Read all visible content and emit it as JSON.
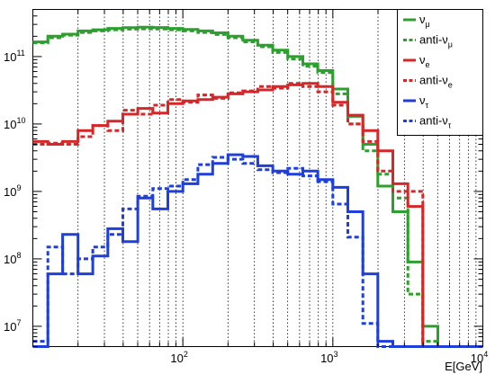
{
  "chart_data": {
    "type": "line",
    "title": "",
    "xlabel": "E[GeV]",
    "ylabel": "",
    "xscale": "log",
    "yscale": "log",
    "xlim": [
      10,
      10000
    ],
    "ylim": [
      5000000,
      500000000000
    ],
    "x_tick_labels": [
      {
        "value": 100,
        "label": "10",
        "sup": "2"
      },
      {
        "value": 1000,
        "label": "10",
        "sup": "3"
      },
      {
        "value": 10000,
        "label": "10",
        "sup": "4"
      }
    ],
    "y_tick_labels": [
      {
        "value": 10000000,
        "label": "10",
        "sup": "7"
      },
      {
        "value": 100000000,
        "label": "10",
        "sup": "8"
      },
      {
        "value": 1000000000,
        "label": "10",
        "sup": "9"
      },
      {
        "value": 10000000000,
        "label": "10",
        "sup": "10"
      },
      {
        "value": 100000000000,
        "label": "10",
        "sup": "11"
      }
    ],
    "grid": "vertical dotted",
    "legend_position": "top-right",
    "bin_edges": [
      10,
      12.6,
      15.8,
      20,
      25.1,
      31.6,
      39.8,
      50.1,
      63.1,
      79.4,
      100,
      126,
      158,
      200,
      251,
      316,
      398,
      501,
      631,
      794,
      1000,
      1259,
      1585,
      1995,
      2512,
      3162,
      3981,
      5012,
      6310,
      7943,
      10000
    ],
    "series": [
      {
        "name": "ν",
        "sub": "μ",
        "color": "#2ca02c",
        "dash": "solid",
        "values": [
          165000000000,
          200000000000,
          215000000000,
          240000000000,
          250000000000,
          262000000000,
          268000000000,
          272000000000,
          270000000000,
          262000000000,
          252000000000,
          240000000000,
          225000000000,
          200000000000,
          175000000000,
          148000000000,
          125000000000,
          100000000000,
          78000000000,
          62000000000,
          33000000000,
          13000000000,
          5000000000,
          1200000000,
          500000000,
          90000000,
          10000000,
          0,
          0,
          0
        ]
      },
      {
        "name": "anti-ν",
        "sub": "μ",
        "color": "#2ca02c",
        "dash": "dotted",
        "values": [
          160000000000,
          190000000000,
          208000000000,
          228000000000,
          240000000000,
          250000000000,
          255000000000,
          258000000000,
          256000000000,
          250000000000,
          240000000000,
          228000000000,
          212000000000,
          190000000000,
          165000000000,
          140000000000,
          115000000000,
          92000000000,
          72000000000,
          58000000000,
          28000000000,
          10000000000,
          4000000000,
          1800000000,
          800000000,
          30000000,
          6000000,
          0,
          0,
          0
        ]
      },
      {
        "name": "ν",
        "sub": "e",
        "color": "#d62728",
        "dash": "solid",
        "values": [
          5500000000,
          5000000000,
          5500000000,
          8000000000,
          9500000000,
          11000000000,
          14000000000,
          17000000000,
          14500000000,
          20000000000,
          22000000000,
          23000000000,
          25000000000,
          28000000000,
          30000000000,
          32000000000,
          36000000000,
          38000000000,
          40000000000,
          36000000000,
          21000000000,
          13500000000,
          8000000000,
          4000000000,
          1300000000,
          600000000,
          0,
          0,
          0,
          0
        ]
      },
      {
        "name": "anti-ν",
        "sub": "e",
        "color": "#d62728",
        "dash": "dotted",
        "values": [
          5000000000,
          5200000000,
          5000000000,
          6500000000,
          9500000000,
          8000000000,
          16000000000,
          14000000000,
          19000000000,
          23000000000,
          21000000000,
          27000000000,
          24000000000,
          29000000000,
          31000000000,
          36000000000,
          34000000000,
          40000000000,
          36000000000,
          30000000000,
          19000000000,
          10000000000,
          5500000000,
          2000000000,
          1000000000,
          1000000000,
          0,
          0,
          0,
          0
        ]
      },
      {
        "name": "ν",
        "sub": "τ",
        "color": "#1f3fdd",
        "dash": "solid",
        "values": [
          0,
          60000000,
          230000000,
          60000000,
          110000000,
          280000000,
          180000000,
          800000000,
          550000000,
          1000000000,
          1300000000,
          1800000000,
          2600000000,
          3500000000,
          3300000000,
          2400000000,
          2000000000,
          1800000000,
          2000000000,
          1500000000,
          1150000000,
          500000000,
          60000000,
          6000000,
          0,
          0,
          0,
          0,
          0,
          0
        ]
      },
      {
        "name": "anti-ν",
        "sub": "τ",
        "color": "#1f3fdd",
        "dash": "dotted",
        "values": [
          6000000,
          150000000,
          60000000,
          100000000,
          150000000,
          230000000,
          550000000,
          850000000,
          1100000000,
          1200000000,
          1500000000,
          2500000000,
          3200000000,
          3000000000,
          2600000000,
          2100000000,
          1900000000,
          2200000000,
          1700000000,
          1400000000,
          650000000,
          210000000,
          11000000,
          0,
          0,
          0,
          0,
          0,
          0,
          0
        ]
      }
    ]
  }
}
